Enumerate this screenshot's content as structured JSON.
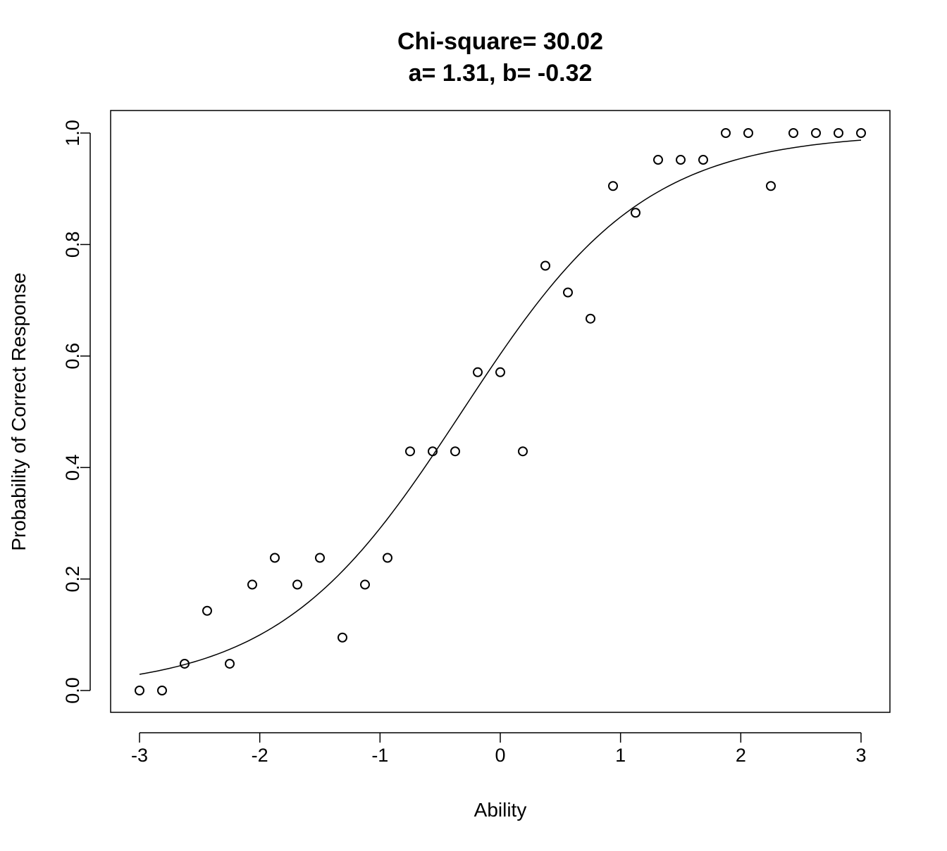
{
  "chart_data": {
    "type": "scatter",
    "title": "Chi-square= 30.02",
    "subtitle": "a= 1.31, b= -0.32",
    "xlabel": "Ability",
    "ylabel": "Probability of Correct Response",
    "xlim": [
      -3,
      3
    ],
    "ylim": [
      0,
      1
    ],
    "xticks": [
      "-3",
      "-2",
      "-1",
      "0",
      "1",
      "2",
      "3"
    ],
    "yticks": [
      "0.0",
      "0.2",
      "0.4",
      "0.6",
      "0.8",
      "1.0"
    ],
    "grid": false,
    "legend": "none",
    "points": {
      "x": [
        -3.0,
        -2.8125,
        -2.625,
        -2.4375,
        -2.25,
        -2.0625,
        -1.875,
        -1.6875,
        -1.5,
        -1.3125,
        -1.125,
        -0.9375,
        -0.75,
        -0.5625,
        -0.375,
        -0.1875,
        0.0,
        0.1875,
        0.375,
        0.5625,
        0.75,
        0.9375,
        1.125,
        1.3125,
        1.5,
        1.6875,
        1.875,
        2.0625,
        2.25,
        2.4375,
        2.625,
        2.8125,
        3.0
      ],
      "y": [
        0.0,
        0.0,
        0.048,
        0.143,
        0.048,
        0.19,
        0.238,
        0.19,
        0.238,
        0.095,
        0.19,
        0.238,
        0.429,
        0.429,
        0.429,
        0.571,
        0.571,
        0.429,
        0.762,
        0.714,
        0.667,
        0.905,
        0.857,
        0.952,
        0.952,
        0.952,
        1.0,
        1.0,
        0.905,
        1.0,
        1.0,
        1.0,
        1.0
      ]
    },
    "curve": {
      "model": "logistic",
      "a": 1.31,
      "b": -0.32,
      "x_range": [
        -3,
        3
      ]
    }
  }
}
